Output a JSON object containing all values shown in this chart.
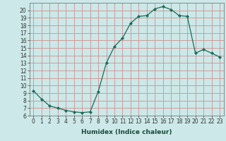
{
  "x": [
    0,
    1,
    2,
    3,
    4,
    5,
    6,
    7,
    8,
    9,
    10,
    11,
    12,
    13,
    14,
    15,
    16,
    17,
    18,
    19,
    20,
    21,
    22,
    23
  ],
  "y": [
    9.3,
    8.2,
    7.3,
    7.0,
    6.7,
    6.5,
    6.4,
    6.5,
    9.2,
    13.0,
    15.2,
    16.3,
    18.3,
    19.2,
    19.3,
    20.2,
    20.5,
    20.1,
    19.3,
    19.2,
    14.3,
    14.8,
    14.3,
    13.8
  ],
  "xlabel": "Humidex (Indice chaleur)",
  "xlim": [
    -0.5,
    23.5
  ],
  "ylim": [
    6,
    21
  ],
  "yticks": [
    6,
    7,
    8,
    9,
    10,
    11,
    12,
    13,
    14,
    15,
    16,
    17,
    18,
    19,
    20
  ],
  "xticks": [
    0,
    1,
    2,
    3,
    4,
    5,
    6,
    7,
    8,
    9,
    10,
    11,
    12,
    13,
    14,
    15,
    16,
    17,
    18,
    19,
    20,
    21,
    22,
    23
  ],
  "line_color": "#1a6b5a",
  "marker_color": "#1a6b5a",
  "bg_color": "#cce8e8",
  "grid_color": "#d08080",
  "tick_fontsize": 5.5,
  "label_fontsize": 6.5
}
